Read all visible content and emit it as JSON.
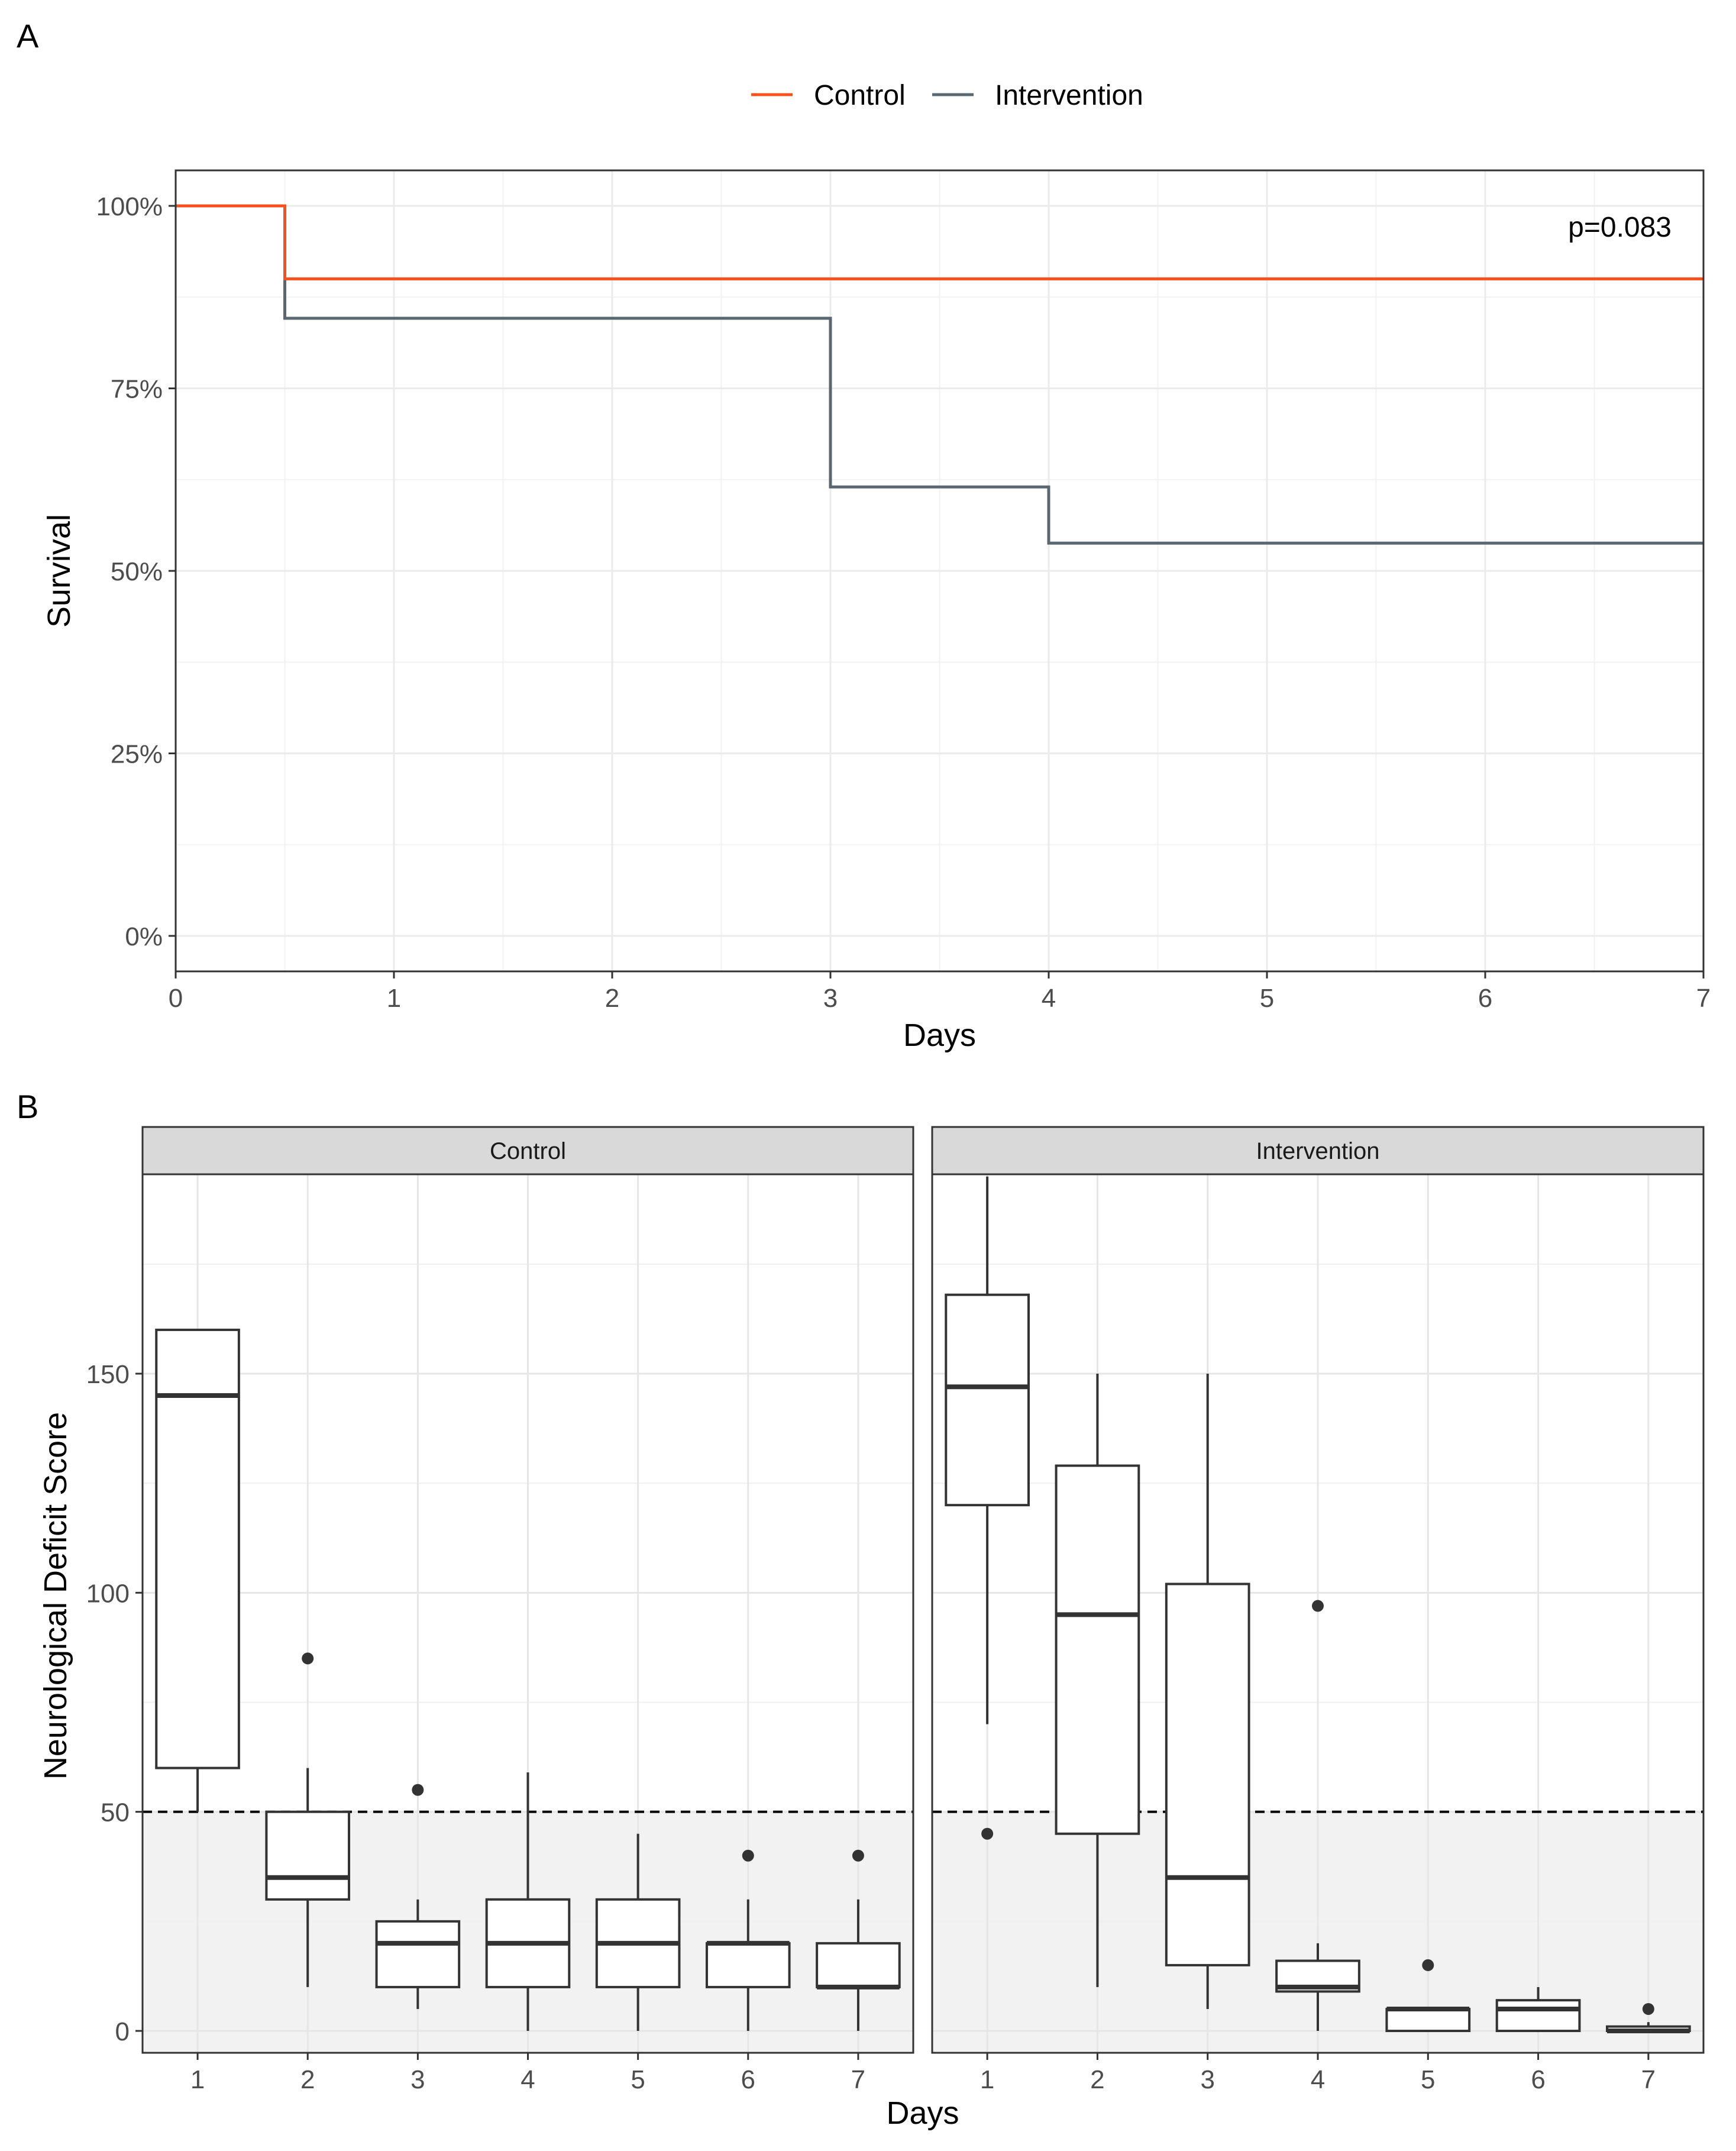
{
  "chart_data": [
    {
      "panel": "A",
      "type": "line",
      "subtype": "kaplan-meier step",
      "xlabel": "Days",
      "ylabel": "Survival",
      "xlim": [
        0,
        7
      ],
      "ylim": [
        0,
        100
      ],
      "xticks": [
        "0",
        "1",
        "2",
        "3",
        "4",
        "5",
        "6",
        "7"
      ],
      "yticks": [
        "0%",
        "25%",
        "50%",
        "75%",
        "100%"
      ],
      "legend": {
        "position": "top",
        "entries": [
          "Control",
          "Intervention"
        ]
      },
      "annotation": "p=0.083",
      "series": [
        {
          "name": "Control",
          "color": "#F8511D",
          "x": [
            0,
            0.5,
            7
          ],
          "y": [
            100,
            90,
            90
          ]
        },
        {
          "name": "Intervention",
          "color": "#5B6770",
          "x": [
            0,
            0.5,
            3,
            4,
            7
          ],
          "y": [
            100,
            84.6,
            61.5,
            53.8,
            53.8
          ]
        }
      ]
    },
    {
      "panel": "B",
      "type": "box",
      "xlabel": "Days",
      "ylabel": "Neurological Deficit Score",
      "ylim": [
        -5,
        195
      ],
      "yticks": [
        "0",
        "50",
        "100",
        "150"
      ],
      "threshold": 50,
      "facets": [
        {
          "label": "Control",
          "categories": [
            "1",
            "2",
            "3",
            "4",
            "5",
            "6",
            "7"
          ],
          "boxes": [
            {
              "q1": 60,
              "median": 145,
              "q3": 160,
              "whisker_low": 50,
              "whisker_high": 160,
              "outliers": []
            },
            {
              "q1": 30,
              "median": 35,
              "q3": 50,
              "whisker_low": 10,
              "whisker_high": 60,
              "outliers": [
                85
              ]
            },
            {
              "q1": 10,
              "median": 20,
              "q3": 25,
              "whisker_low": 5,
              "whisker_high": 30,
              "outliers": [
                55
              ]
            },
            {
              "q1": 10,
              "median": 20,
              "q3": 30,
              "whisker_low": 0,
              "whisker_high": 59,
              "outliers": []
            },
            {
              "q1": 10,
              "median": 20,
              "q3": 30,
              "whisker_low": 0,
              "whisker_high": 45,
              "outliers": []
            },
            {
              "q1": 10,
              "median": 20,
              "q3": 20,
              "whisker_low": 0,
              "whisker_high": 30,
              "outliers": [
                40
              ]
            },
            {
              "q1": 10,
              "median": 10,
              "q3": 20,
              "whisker_low": 0,
              "whisker_high": 30,
              "outliers": [
                40
              ]
            }
          ]
        },
        {
          "label": "Intervention",
          "categories": [
            "1",
            "2",
            "3",
            "4",
            "5",
            "6",
            "7"
          ],
          "boxes": [
            {
              "q1": 120,
              "median": 147,
              "q3": 168,
              "whisker_low": 70,
              "whisker_high": 195,
              "outliers": [
                45
              ]
            },
            {
              "q1": 45,
              "median": 95,
              "q3": 129,
              "whisker_low": 10,
              "whisker_high": 150,
              "outliers": []
            },
            {
              "q1": 15,
              "median": 35,
              "q3": 102,
              "whisker_low": 5,
              "whisker_high": 150,
              "outliers": []
            },
            {
              "q1": 9,
              "median": 10,
              "q3": 16,
              "whisker_low": 0,
              "whisker_high": 20,
              "outliers": [
                97
              ]
            },
            {
              "q1": 0,
              "median": 5,
              "q3": 5,
              "whisker_low": 0,
              "whisker_high": 5,
              "outliers": [
                15
              ]
            },
            {
              "q1": 0,
              "median": 5,
              "q3": 7,
              "whisker_low": 0,
              "whisker_high": 10,
              "outliers": []
            },
            {
              "q1": 0,
              "median": 0,
              "q3": 1,
              "whisker_low": 0,
              "whisker_high": 2,
              "outliers": [
                5
              ]
            }
          ]
        }
      ]
    }
  ]
}
